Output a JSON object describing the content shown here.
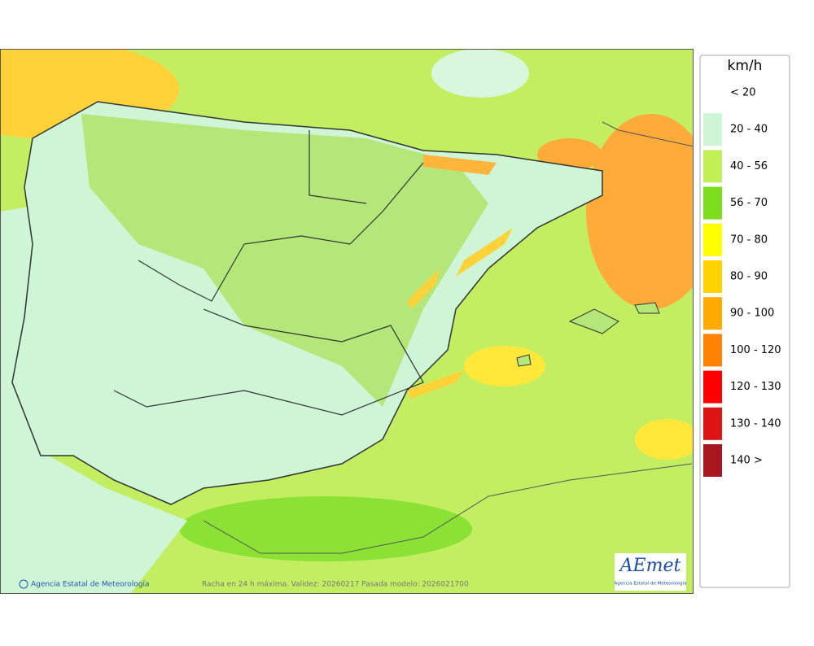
{
  "map": {
    "footer_credit": "Agencia Estatal de Meteorología",
    "caption": "Racha en 24 h máxima. Validez: 20260217 Pasada modelo: 2026021700",
    "logo": {
      "name": "AEmet",
      "subtitle": "Agencia Estatal de Meteorología"
    }
  },
  "legend": {
    "title": "km/h",
    "items": [
      {
        "label": "< 20",
        "color": "#ffffff"
      },
      {
        "label": "20 - 40",
        "color": "#cdf5d6"
      },
      {
        "label": "40 - 56",
        "color": "#c2ef55"
      },
      {
        "label": "56 - 70",
        "color": "#7ede1e"
      },
      {
        "label": "70 - 80",
        "color": "#ffff00"
      },
      {
        "label": "80 - 90",
        "color": "#ffd200"
      },
      {
        "label": "90 - 100",
        "color": "#ffab00"
      },
      {
        "label": "100 - 120",
        "color": "#ff8200"
      },
      {
        "label": "120 - 130",
        "color": "#ff0000"
      },
      {
        "label": "130 - 140",
        "color": "#dc1414"
      },
      {
        "label": "140 >",
        "color": "#a8161e"
      }
    ]
  }
}
